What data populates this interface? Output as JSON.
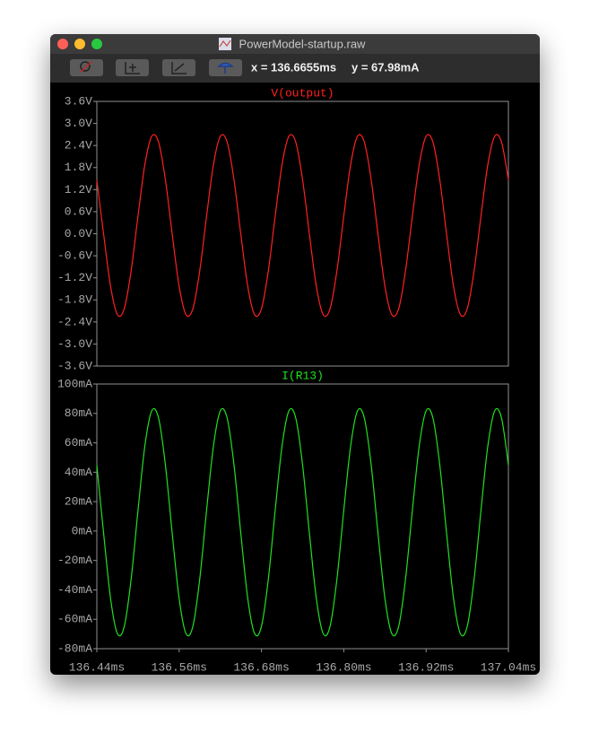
{
  "window": {
    "title": "PowerModel-startup.raw",
    "cursor_x": "x = 136.6655ms",
    "cursor_y": "y = 67.98mA"
  },
  "chart_data": [
    {
      "type": "line",
      "title": "V(output)",
      "color": "#ff2020",
      "x": [
        136.44,
        136.45,
        136.46,
        136.47,
        136.48,
        136.49,
        136.5,
        136.51,
        136.52,
        136.53,
        136.54,
        136.55,
        136.56,
        136.57,
        136.58,
        136.59,
        136.6,
        136.61,
        136.62,
        136.63,
        136.64,
        136.65,
        136.66,
        136.67,
        136.68,
        136.69,
        136.7,
        136.71,
        136.72,
        136.73,
        136.74,
        136.75,
        136.76,
        136.77,
        136.78,
        136.79,
        136.8,
        136.81,
        136.82,
        136.83,
        136.84,
        136.85,
        136.86,
        136.87,
        136.88,
        136.89,
        136.9,
        136.91,
        136.92,
        136.93,
        136.94,
        136.95,
        136.96,
        136.97,
        136.98,
        136.99,
        137.0,
        137.01,
        137.02,
        137.03,
        137.04
      ],
      "values": [
        1.46,
        -0.03,
        -1.43,
        -2.2,
        -2.04,
        -1.01,
        0.48,
        1.88,
        2.65,
        2.49,
        1.46,
        -0.03,
        -1.43,
        -2.2,
        -2.04,
        -1.01,
        0.48,
        1.88,
        2.65,
        2.49,
        1.46,
        -0.03,
        -1.43,
        -2.2,
        -2.04,
        -1.01,
        0.48,
        1.88,
        2.65,
        2.49,
        1.46,
        -0.03,
        -1.43,
        -2.2,
        -2.04,
        -1.01,
        0.48,
        1.88,
        2.65,
        2.49,
        1.46,
        -0.03,
        -1.43,
        -2.2,
        -2.04,
        -1.01,
        0.48,
        1.88,
        2.65,
        2.49,
        1.46,
        -0.03,
        -1.43,
        -2.2,
        -2.04,
        -1.01,
        0.48,
        1.88,
        2.65,
        2.49,
        1.46
      ],
      "xlim": [
        136.44,
        137.04
      ],
      "ylim": [
        -3.6,
        3.6
      ],
      "yticks": [
        {
          "value": 3.6,
          "label": "3.6V"
        },
        {
          "value": 3.0,
          "label": "3.0V"
        },
        {
          "value": 2.4,
          "label": "2.4V"
        },
        {
          "value": 1.8,
          "label": "1.8V"
        },
        {
          "value": 1.2,
          "label": "1.2V"
        },
        {
          "value": 0.6,
          "label": "0.6V"
        },
        {
          "value": 0,
          "label": "0.0V"
        },
        {
          "value": -0.6,
          "label": "-0.6V"
        },
        {
          "value": -1.2,
          "label": "-1.2V"
        },
        {
          "value": -1.8,
          "label": "-1.8V"
        },
        {
          "value": -2.4,
          "label": "-2.4V"
        },
        {
          "value": -3.0,
          "label": "-3.0V"
        },
        {
          "value": -3.6,
          "label": "-3.6V"
        }
      ]
    },
    {
      "type": "line",
      "title": "I(R13)",
      "color": "#20e020",
      "x": [
        136.44,
        136.45,
        136.46,
        136.47,
        136.48,
        136.49,
        136.5,
        136.51,
        136.52,
        136.53,
        136.54,
        136.55,
        136.56,
        136.57,
        136.58,
        136.59,
        136.6,
        136.61,
        136.62,
        136.63,
        136.64,
        136.65,
        136.66,
        136.67,
        136.68,
        136.69,
        136.7,
        136.71,
        136.72,
        136.73,
        136.74,
        136.75,
        136.76,
        136.77,
        136.78,
        136.79,
        136.8,
        136.81,
        136.82,
        136.83,
        136.84,
        136.85,
        136.86,
        136.87,
        136.88,
        136.89,
        136.9,
        136.91,
        136.92,
        136.93,
        136.94,
        136.95,
        136.96,
        136.97,
        136.98,
        136.99,
        137.0,
        137.01,
        137.02,
        137.03,
        137.04
      ],
      "values": [
        44.75,
        -2.1,
        -45.86,
        -69.8,
        -64.8,
        -32.75,
        14.1,
        57.86,
        81.8,
        76.8,
        44.75,
        -2.1,
        -45.86,
        -69.8,
        -64.8,
        -32.75,
        14.1,
        57.86,
        81.8,
        76.8,
        44.75,
        -2.1,
        -45.86,
        -69.8,
        -64.8,
        -32.75,
        14.1,
        57.86,
        81.8,
        76.8,
        44.75,
        -2.1,
        -45.86,
        -69.8,
        -64.8,
        -32.75,
        14.1,
        57.86,
        81.8,
        76.8,
        44.75,
        -2.1,
        -45.86,
        -69.8,
        -64.8,
        -32.75,
        14.1,
        57.86,
        81.8,
        76.8,
        44.75,
        -2.1,
        -45.86,
        -69.8,
        -64.8,
        -32.75,
        14.1,
        57.86,
        81.8,
        76.8,
        44.75
      ],
      "xlim": [
        136.44,
        137.04
      ],
      "ylim": [
        -80,
        100
      ],
      "xticks": [
        {
          "value": 136.44,
          "label": "136.44ms"
        },
        {
          "value": 136.56,
          "label": "136.56ms"
        },
        {
          "value": 136.68,
          "label": "136.68ms"
        },
        {
          "value": 136.8,
          "label": "136.80ms"
        },
        {
          "value": 136.92,
          "label": "136.92ms"
        },
        {
          "value": 137.04,
          "label": "137.04ms"
        }
      ],
      "yticks": [
        {
          "value": 100,
          "label": "100mA"
        },
        {
          "value": 80,
          "label": "80mA"
        },
        {
          "value": 60,
          "label": "60mA"
        },
        {
          "value": 40,
          "label": "40mA"
        },
        {
          "value": 20,
          "label": "20mA"
        },
        {
          "value": 0,
          "label": "0mA"
        },
        {
          "value": -20,
          "label": "-20mA"
        },
        {
          "value": -40,
          "label": "-40mA"
        },
        {
          "value": -60,
          "label": "-60mA"
        },
        {
          "value": -80,
          "label": "-80mA"
        }
      ]
    }
  ]
}
